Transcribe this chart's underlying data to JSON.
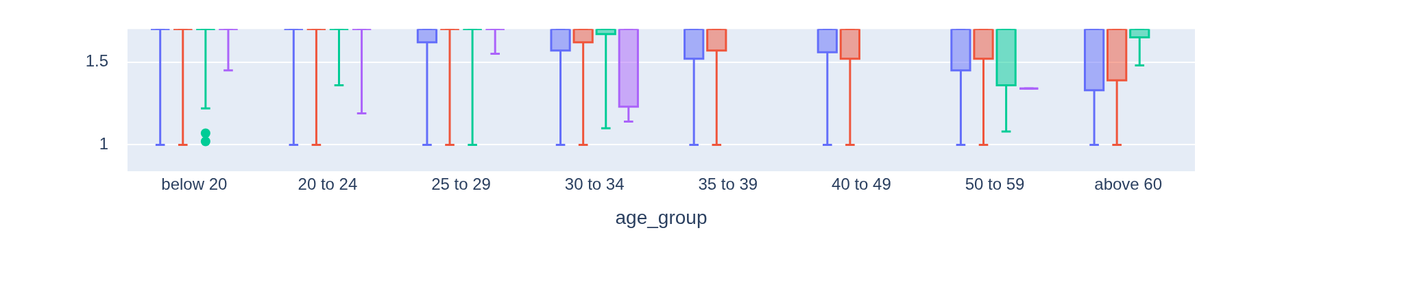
{
  "chart_data": {
    "type": "box",
    "xlabel": "age_group",
    "categories": [
      "below 20",
      "20 to 24",
      "25 to 29",
      "30 to 34",
      "35 to 39",
      "40 to 49",
      "50 to 59",
      "above 60"
    ],
    "ylim": [
      0.84,
      1.7
    ],
    "yticks": [
      1,
      1.5
    ],
    "grid": "y",
    "series": [
      {
        "color": "#636efa",
        "boxes": [
          {
            "low": 1,
            "q1": 1.7,
            "median": 1.7,
            "q3": 1.7,
            "high": 1.7
          },
          {
            "low": 1,
            "q1": 1.7,
            "median": 1.7,
            "q3": 1.7,
            "high": 1.7
          },
          {
            "low": 1,
            "q1": 1.62,
            "median": 1.7,
            "q3": 1.7,
            "high": 1.7
          },
          {
            "low": 1,
            "q1": 1.57,
            "median": 1.7,
            "q3": 1.7,
            "high": 1.7
          },
          {
            "low": 1,
            "q1": 1.52,
            "median": 1.7,
            "q3": 1.7,
            "high": 1.7
          },
          {
            "low": 1,
            "q1": 1.56,
            "median": 1.7,
            "q3": 1.7,
            "high": 1.7
          },
          {
            "low": 1,
            "q1": 1.45,
            "median": 1.7,
            "q3": 1.7,
            "high": 1.7
          },
          {
            "low": 1,
            "q1": 1.33,
            "median": 1.7,
            "q3": 1.7,
            "high": 1.7
          }
        ]
      },
      {
        "color": "#ef553b",
        "boxes": [
          {
            "low": 1,
            "q1": 1.7,
            "median": 1.7,
            "q3": 1.7,
            "high": 1.7
          },
          {
            "low": 1,
            "q1": 1.7,
            "median": 1.7,
            "q3": 1.7,
            "high": 1.7
          },
          {
            "low": 1,
            "q1": 1.7,
            "median": 1.7,
            "q3": 1.7,
            "high": 1.7
          },
          {
            "low": 1,
            "q1": 1.62,
            "median": 1.7,
            "q3": 1.7,
            "high": 1.7
          },
          {
            "low": 1,
            "q1": 1.57,
            "median": 1.7,
            "q3": 1.7,
            "high": 1.7
          },
          {
            "low": 1,
            "q1": 1.52,
            "median": 1.7,
            "q3": 1.7,
            "high": 1.7
          },
          {
            "low": 1,
            "q1": 1.52,
            "median": 1.7,
            "q3": 1.7,
            "high": 1.7
          },
          {
            "low": 1,
            "q1": 1.39,
            "median": 1.7,
            "q3": 1.7,
            "high": 1.7
          }
        ]
      },
      {
        "color": "#00cc96",
        "boxes": [
          {
            "low": 1.22,
            "q1": 1.7,
            "median": 1.7,
            "q3": 1.7,
            "high": 1.7,
            "outliers": [
              1.07,
              1.02
            ]
          },
          {
            "low": 1.36,
            "q1": 1.7,
            "median": 1.7,
            "q3": 1.7,
            "high": 1.7
          },
          {
            "low": 1,
            "q1": 1.7,
            "median": 1.7,
            "q3": 1.7,
            "high": 1.7
          },
          {
            "low": 1.1,
            "q1": 1.67,
            "median": 1.7,
            "q3": 1.7,
            "high": 1.7
          },
          null,
          null,
          {
            "low": 1.08,
            "q1": 1.36,
            "median": 1.7,
            "q3": 1.7,
            "high": 1.7
          },
          {
            "low": 1.48,
            "q1": 1.65,
            "median": 1.7,
            "q3": 1.7,
            "high": 1.7
          }
        ]
      },
      {
        "color": "#ab63fa",
        "boxes": [
          {
            "low": 1.45,
            "q1": 1.7,
            "median": 1.7,
            "q3": 1.7,
            "high": 1.7
          },
          {
            "low": 1.19,
            "q1": 1.7,
            "median": 1.7,
            "q3": 1.7,
            "high": 1.7
          },
          {
            "low": 1.55,
            "q1": 1.7,
            "median": 1.7,
            "q3": 1.7,
            "high": 1.7
          },
          {
            "low": 1.14,
            "q1": 1.23,
            "median": 1.7,
            "q3": 1.7,
            "high": 1.7
          },
          null,
          null,
          {
            "low": 1.34,
            "q1": 1.34,
            "median": 1.34,
            "q3": 1.34,
            "high": 1.34
          },
          null
        ]
      }
    ]
  }
}
